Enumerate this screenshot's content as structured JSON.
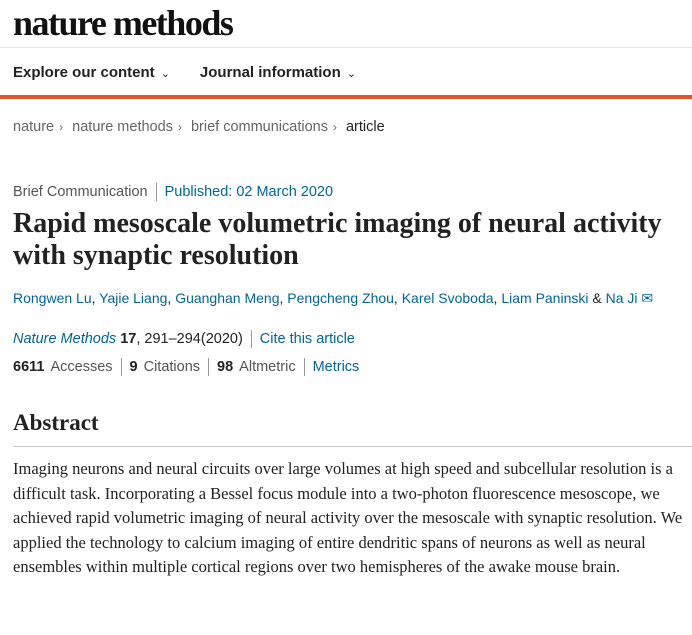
{
  "header": {
    "logo": "nature methods",
    "nav": [
      {
        "label": "Explore our content"
      },
      {
        "label": "Journal information"
      }
    ],
    "accent_color": "#e0532b"
  },
  "breadcrumb": [
    "nature",
    "nature methods",
    "brief communications",
    "article"
  ],
  "article": {
    "type": "Brief Communication",
    "published": "Published: 02 March 2020",
    "title": "Rapid mesoscale volumetric imaging of neural activity with synaptic resolution",
    "authors": [
      "Rongwen Lu",
      "Yajie Liang",
      "Guanghan Meng",
      "Pengcheng Zhou",
      "Karel Svoboda",
      "Liam Paninski",
      "Na Ji"
    ],
    "journal": "Nature Methods",
    "volume": "17",
    "pages": ", 291–294",
    "year": "(2020)",
    "cite": "Cite this article",
    "accesses": "6611",
    "accesses_label": "Accesses",
    "citations": "9",
    "citations_label": "Citations",
    "altmetric": "98",
    "altmetric_label": "Altmetric",
    "metrics": "Metrics",
    "abstract_heading": "Abstract",
    "abstract": "Imaging neurons and neural circuits over large volumes at high speed and subcellular resolution is a difficult task. Incorporating a Bessel focus module into a two-photon fluorescence mesoscope, we achieved rapid volumetric imaging of neural activity over the mesoscale with synaptic resolution. We applied the technology to calcium imaging of entire dendritic spans of neurons as well as neural ensembles within multiple cortical regions over two hemispheres of the awake mouse brain."
  }
}
